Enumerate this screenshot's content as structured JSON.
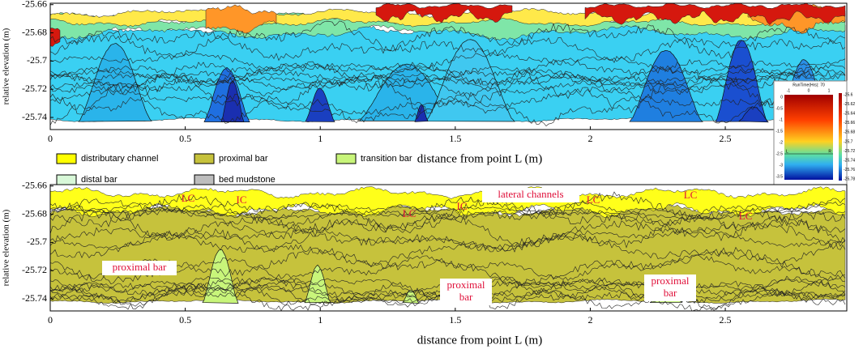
{
  "chart_data": [
    {
      "type": "section",
      "xlabel": "distance from point L (m)",
      "ylabel": "relative elevation (m)",
      "xlim": [
        0,
        2.95
      ],
      "ylim": [
        -25.7486,
        -25.659
      ],
      "xticks": [
        0,
        0.5,
        1,
        1.5,
        2,
        2.5
      ],
      "yticks": [
        -25.66,
        -25.68,
        -25.7,
        -25.72,
        -25.74
      ],
      "inset": {
        "title": "RunTime(Hrs): 70",
        "xticks": [
          -1,
          0,
          1
        ],
        "yticks": [
          0,
          -0.5,
          -1,
          -1.5,
          -2,
          -2.5,
          -3,
          -3.5
        ],
        "left": "L",
        "right": "R",
        "cbticks": [
          -25.6,
          -25.62,
          -25.64,
          -25.66,
          -25.68,
          -25.7,
          -25.72,
          -25.74,
          -25.76,
          -25.78
        ]
      }
    },
    {
      "type": "section",
      "xlabel": "distance from point L (m)",
      "ylabel": "relative elevation (m)",
      "xlim": [
        0,
        2.95
      ],
      "ylim": [
        -25.7486,
        -25.659
      ],
      "xticks": [
        0,
        0.5,
        1,
        1.5,
        2,
        2.5
      ],
      "yticks": [
        -25.66,
        -25.68,
        -25.7,
        -25.72,
        -25.74
      ],
      "annotations": [
        {
          "lines": [
            "LC"
          ]
        },
        {
          "lines": [
            "IC"
          ]
        },
        {
          "lines": [
            "lateral channels"
          ]
        },
        {
          "lines": [
            "LC"
          ]
        },
        {
          "lines": [
            "IC"
          ]
        },
        {
          "lines": [
            "LC"
          ]
        },
        {
          "lines": [
            "LC"
          ]
        },
        {
          "lines": [
            "LC"
          ]
        },
        {
          "lines": [
            "proximal bar"
          ]
        },
        {
          "lines": [
            "proximal",
            "bar"
          ]
        },
        {
          "lines": [
            "proximal",
            "bar"
          ]
        }
      ]
    }
  ],
  "legend": [
    {
      "label": "distributary channel",
      "color": "#ffff00"
    },
    {
      "label": "proximal bar",
      "color": "#c6c23c"
    },
    {
      "label": "transition bar",
      "color": "#c8f57a"
    },
    {
      "label": "distal bar",
      "color": "#d8f8d8"
    },
    {
      "label": "bed mudstone",
      "color": "#bdbdbd"
    }
  ]
}
